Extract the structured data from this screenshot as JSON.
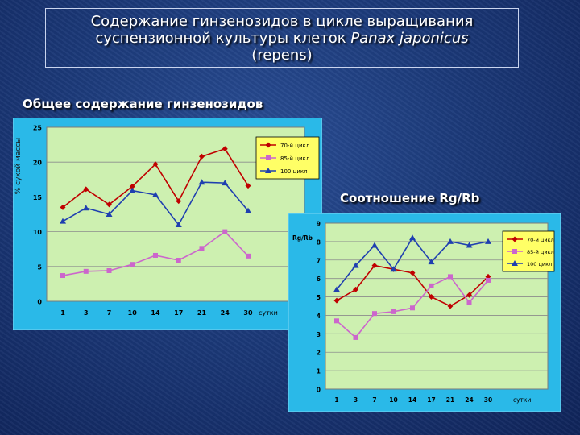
{
  "slide_title": {
    "line1": "Содержание гинзенозидов в цикле выращивания",
    "line2_prefix": "суспензионной культуры клеток ",
    "line2_species": "Panax japonicus",
    "line3": "(repens)"
  },
  "colors": {
    "background": "#1c3a7a",
    "chart_frame": "#2ab9e8",
    "plot_area": "#cdf0b0",
    "legend_box": "#ffff66",
    "series_70": "#c00000",
    "series_85": "#cc66cc",
    "series_100": "#1f3fb0"
  },
  "chart_data": [
    {
      "type": "line",
      "title": "Общее содержание гинзенозидов",
      "ylabel": "% сухой массы",
      "xlabel": "сутки",
      "categories": [
        "1",
        "3",
        "7",
        "10",
        "14",
        "17",
        "21",
        "24",
        "30"
      ],
      "ylim": [
        0,
        25
      ],
      "yticks": [
        "0",
        "5",
        "10",
        "15",
        "20",
        "25"
      ],
      "grid": true,
      "legend_position": "top-right",
      "series": [
        {
          "name": "70-й цикл",
          "marker": "diamond",
          "values": [
            13.5,
            16.1,
            13.9,
            16.5,
            19.7,
            14.4,
            20.8,
            21.9,
            16.6
          ]
        },
        {
          "name": "85-й цикл",
          "marker": "square",
          "values": [
            3.7,
            4.3,
            4.4,
            5.3,
            6.6,
            5.9,
            7.6,
            10.0,
            6.5
          ]
        },
        {
          "name": "100 цикл",
          "marker": "triangle",
          "values": [
            11.5,
            13.4,
            12.5,
            15.9,
            15.3,
            11.0,
            17.1,
            17.0,
            13.0
          ]
        }
      ]
    },
    {
      "type": "line",
      "title": "Соотношение Rg/Rb",
      "ylabel": "Rg/Rb",
      "xlabel": "сутки",
      "categories": [
        "1",
        "3",
        "7",
        "10",
        "14",
        "17",
        "21",
        "24",
        "30"
      ],
      "ylim": [
        0,
        9
      ],
      "yticks": [
        "0",
        "1",
        "2",
        "3",
        "4",
        "5",
        "6",
        "7",
        "8",
        "9"
      ],
      "grid": true,
      "legend_position": "top-right",
      "series": [
        {
          "name": "70-й цикл",
          "marker": "diamond",
          "values": [
            4.8,
            5.4,
            6.7,
            6.5,
            6.3,
            5.0,
            4.5,
            5.1,
            6.1
          ]
        },
        {
          "name": "85-й цикл",
          "marker": "square",
          "values": [
            3.7,
            2.8,
            4.1,
            4.2,
            4.4,
            5.6,
            6.1,
            4.7,
            5.9
          ]
        },
        {
          "name": "100 цикл",
          "marker": "triangle",
          "values": [
            5.4,
            6.7,
            7.8,
            6.5,
            8.2,
            6.9,
            8.0,
            7.8,
            8.0
          ]
        }
      ]
    }
  ]
}
